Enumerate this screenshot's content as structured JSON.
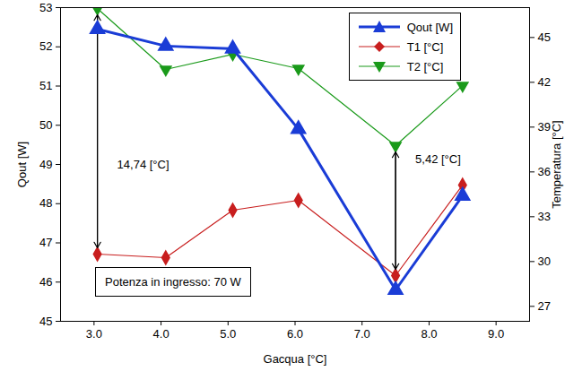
{
  "chart_data": {
    "type": "line",
    "x": [
      3.05,
      4.07,
      5.07,
      6.05,
      7.5,
      8.5
    ],
    "xlabel": "Gacqua [°C]",
    "ylabel": "Qout [W]",
    "y2label": "Temperatura [°C]",
    "xlim": [
      2.5,
      9.5
    ],
    "xticks": [
      3,
      4,
      5,
      6,
      7,
      8,
      9
    ],
    "ylim": [
      45,
      53
    ],
    "yticks": [
      45,
      46,
      47,
      48,
      49,
      50,
      51,
      52,
      53
    ],
    "y2lim": [
      26,
      47
    ],
    "y2ticks": [
      27,
      30,
      33,
      36,
      39,
      42,
      45
    ],
    "series": [
      {
        "name": "Qout [W]",
        "color": "#1a3cd6",
        "marker": "triangle",
        "values": [
          52.45,
          52.02,
          51.95,
          49.9,
          45.8,
          48.2
        ]
      },
      {
        "name": "T1 [°C]",
        "color": "#c81e1e",
        "marker": "diamond",
        "axis": "y2",
        "values": [
          30.5,
          30.26,
          33.44,
          34.1,
          29.06,
          35.12
        ]
      },
      {
        "name": "T2 [°C]",
        "color": "#1a9a1a",
        "marker": "triangle-down",
        "axis": "y2",
        "values": [
          46.94,
          42.86,
          43.88,
          42.92,
          37.76,
          41.78
        ]
      }
    ],
    "legend": "top-right",
    "annotations": [
      {
        "text": "14,74 [°C]",
        "x": 3.05,
        "y": 36.5
      },
      {
        "text": "5,42 [°C]",
        "x": 7.5,
        "y": 36.86
      },
      {
        "text": "Potenza in ingresso: 70 W"
      }
    ]
  }
}
